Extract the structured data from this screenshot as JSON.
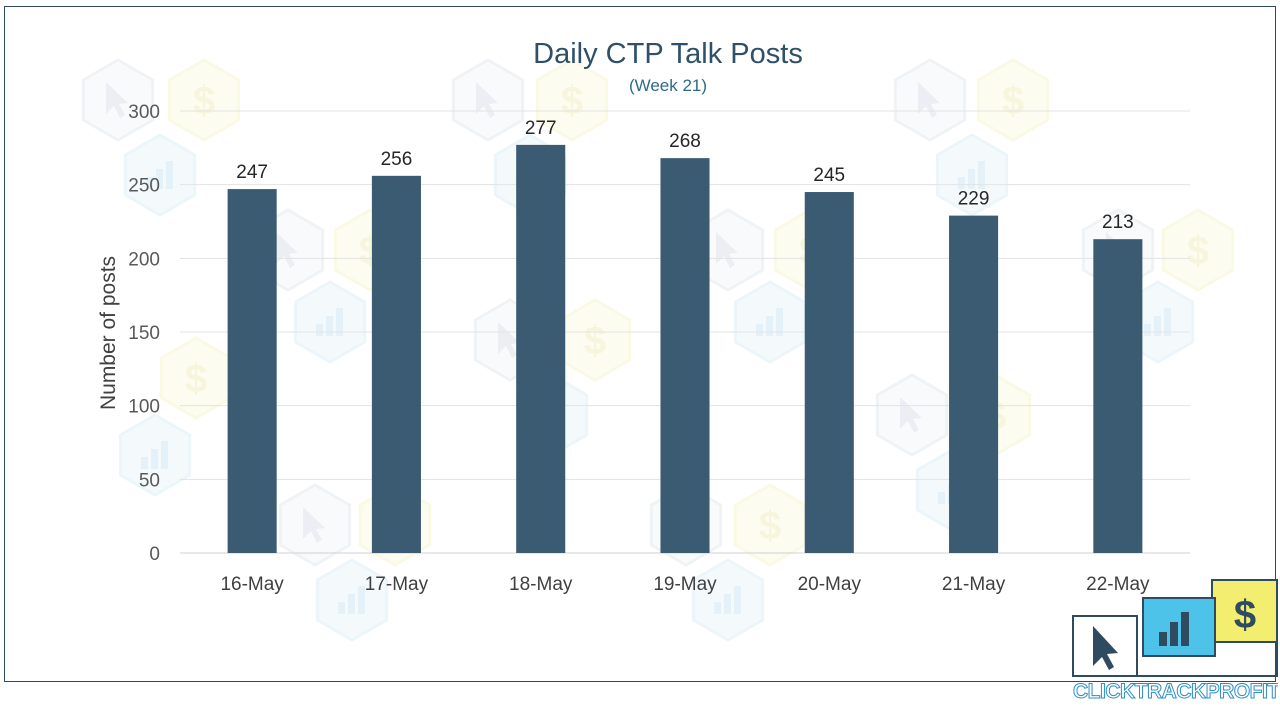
{
  "chart_data": {
    "type": "bar",
    "title": "Daily CTP Talk Posts",
    "subtitle": "(Week 21)",
    "xlabel": "",
    "ylabel": "Number of posts",
    "categories": [
      "16-May",
      "17-May",
      "18-May",
      "19-May",
      "20-May",
      "21-May",
      "22-May"
    ],
    "values": [
      247,
      256,
      277,
      268,
      245,
      229,
      213
    ],
    "ylim": [
      0,
      300
    ],
    "yticks": [
      0,
      50,
      100,
      150,
      200,
      250,
      300
    ],
    "grid": true,
    "legend": "none",
    "bar_color": "#3b5b73"
  },
  "logo": {
    "text": "CLICKTRACKPROFIT",
    "icons": [
      "cursor-icon",
      "bar-chart-icon",
      "dollar-icon"
    ],
    "colors": {
      "blue": "#4dc3ea",
      "yellow": "#f4ee70",
      "dark": "#2f4b5f"
    }
  },
  "watermark": {
    "icons": [
      "cursor-icon",
      "dollar-icon",
      "bar-chart-icon"
    ]
  }
}
